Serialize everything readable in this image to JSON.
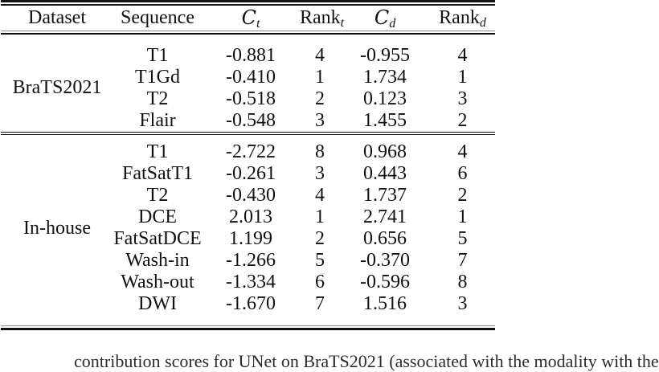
{
  "table": {
    "headers": {
      "dataset": "Dataset",
      "sequence": "Sequence",
      "ct_base": "C",
      "ct_sub": "t",
      "rankt_base": "Rank",
      "rankt_sub": "t",
      "cd_base": "C",
      "cd_sub": "d",
      "rankd_base": "Rank",
      "rankd_sub": "d"
    },
    "sections": [
      {
        "dataset": "BraTS2021",
        "rows": [
          {
            "sequence": "T1",
            "ct": "-0.881",
            "rank_t": "4",
            "cd": "-0.955",
            "rank_d": "4"
          },
          {
            "sequence": "T1Gd",
            "ct": "-0.410",
            "rank_t": "1",
            "cd": "1.734",
            "rank_d": "1"
          },
          {
            "sequence": "T2",
            "ct": "-0.518",
            "rank_t": "2",
            "cd": "0.123",
            "rank_d": "3"
          },
          {
            "sequence": "Flair",
            "ct": "-0.548",
            "rank_t": "3",
            "cd": "1.455",
            "rank_d": "2"
          }
        ]
      },
      {
        "dataset": "In-house",
        "rows": [
          {
            "sequence": "T1",
            "ct": "-2.722",
            "rank_t": "8",
            "cd": "0.968",
            "rank_d": "4"
          },
          {
            "sequence": "FatSatT1",
            "ct": "-0.261",
            "rank_t": "3",
            "cd": "0.443",
            "rank_d": "6"
          },
          {
            "sequence": "T2",
            "ct": "-0.430",
            "rank_t": "4",
            "cd": "1.737",
            "rank_d": "2"
          },
          {
            "sequence": "DCE",
            "ct": "2.013",
            "rank_t": "1",
            "cd": "2.741",
            "rank_d": "1"
          },
          {
            "sequence": "FatSatDCE",
            "ct": "1.199",
            "rank_t": "2",
            "cd": "0.656",
            "rank_d": "5"
          },
          {
            "sequence": "Wash-in",
            "ct": "-1.266",
            "rank_t": "5",
            "cd": "-0.370",
            "rank_d": "7"
          },
          {
            "sequence": "Wash-out",
            "ct": "-1.334",
            "rank_t": "6",
            "cd": "-0.596",
            "rank_d": "8"
          },
          {
            "sequence": "DWI",
            "ct": "-1.670",
            "rank_t": "7",
            "cd": "1.516",
            "rank_d": "3"
          }
        ]
      }
    ]
  },
  "caption_fragment": "contribution scores for UNet on BraTS2021 (associated with the modality with the",
  "colors": {
    "background": "#ffffff",
    "text": "#111111",
    "rule": "#111111"
  }
}
